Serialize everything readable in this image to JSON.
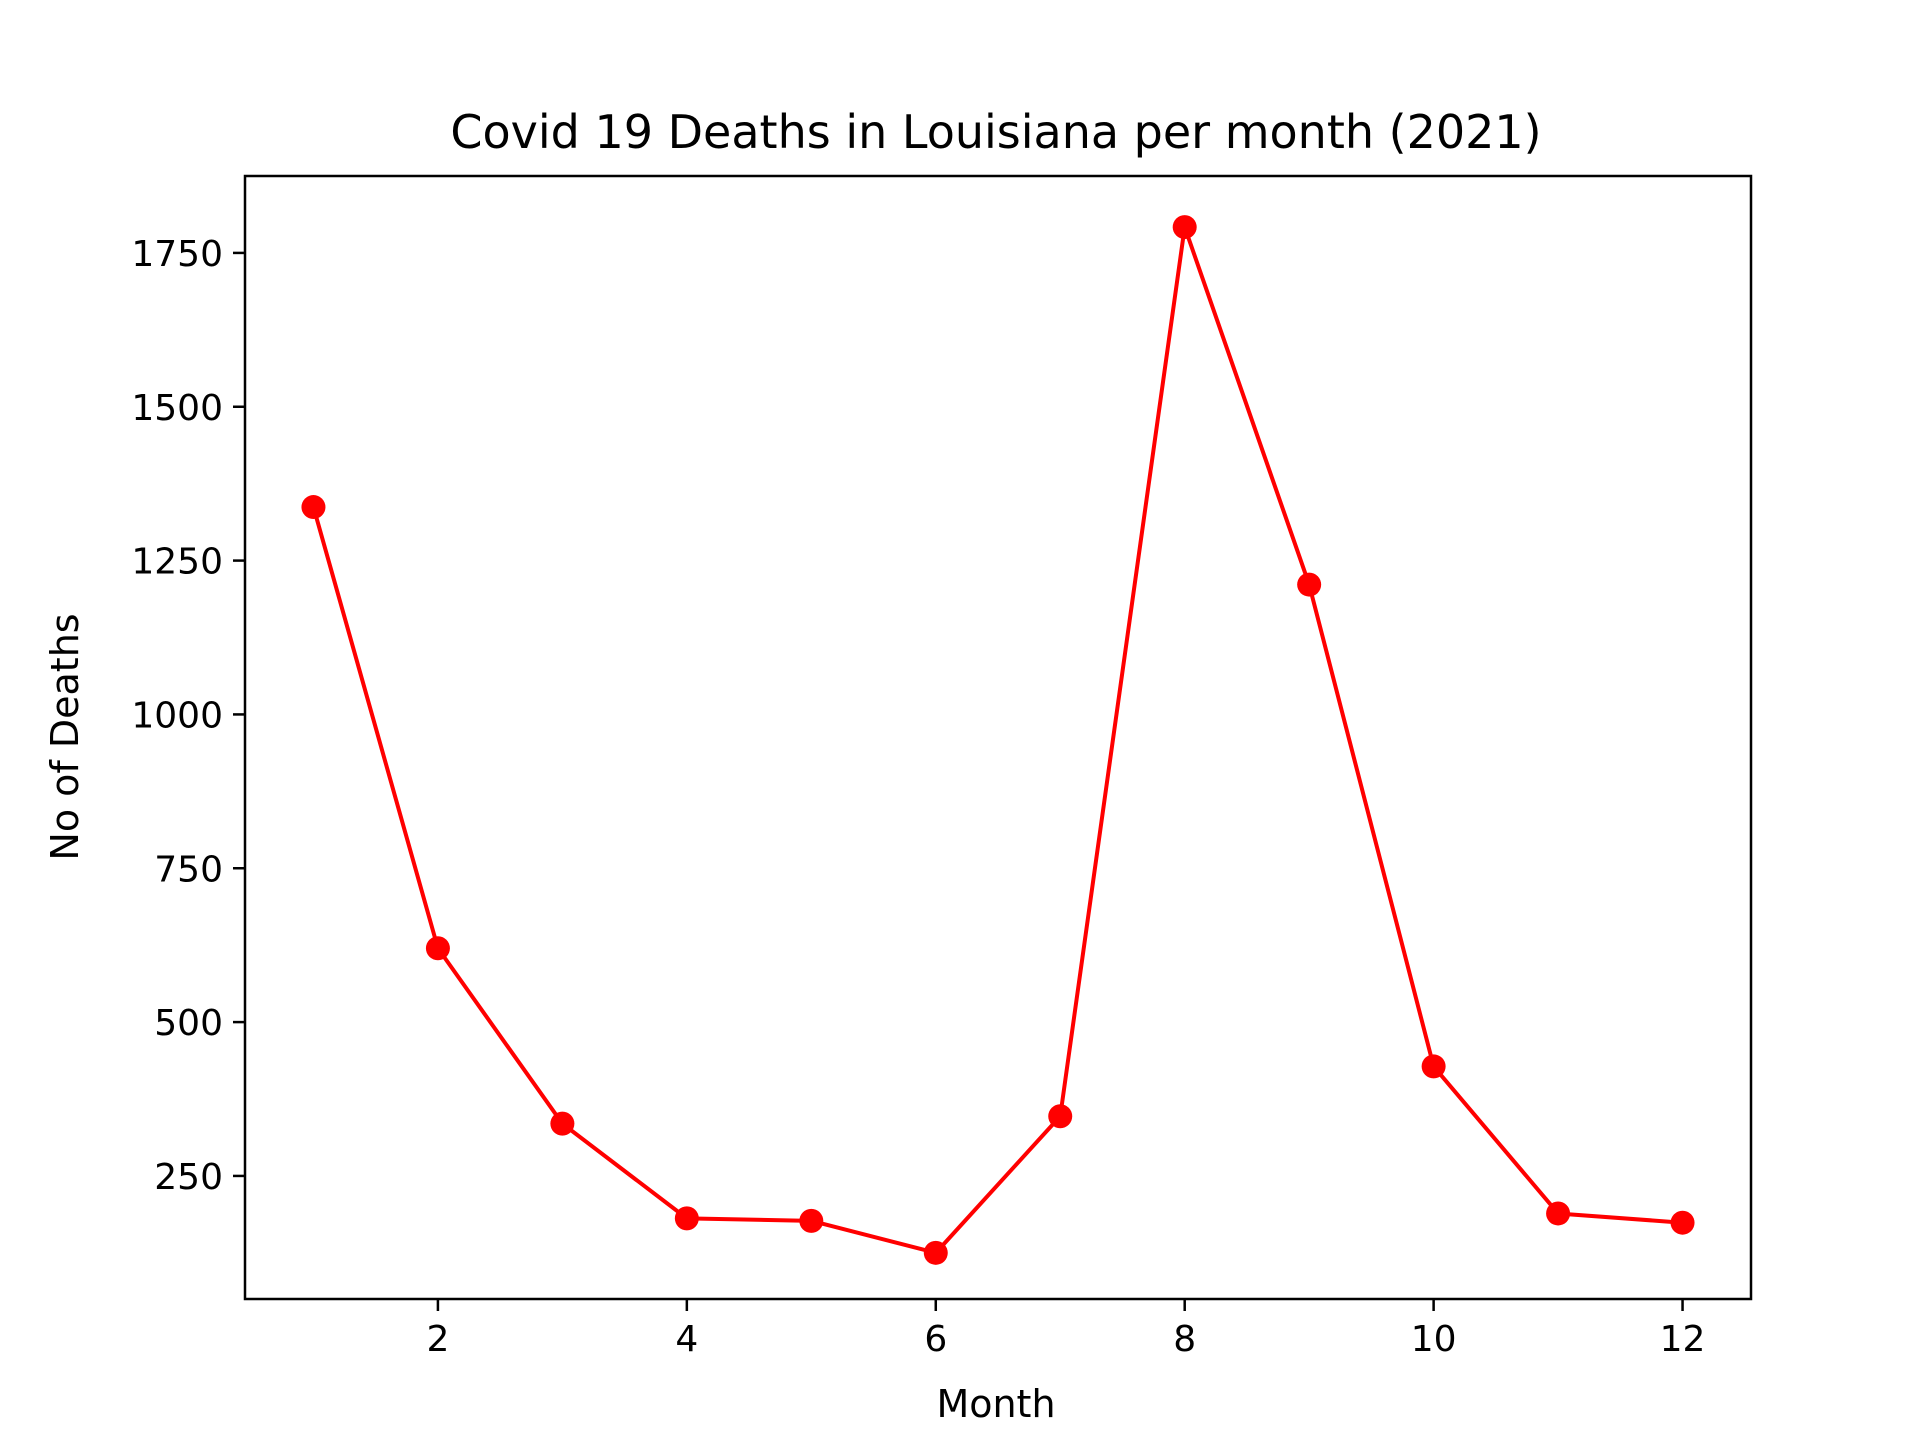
{
  "chart_data": {
    "type": "line",
    "title": "Covid 19 Deaths in Louisiana per month (2021)",
    "xlabel": "Month",
    "ylabel": "No of Deaths",
    "x": [
      1,
      2,
      3,
      4,
      5,
      6,
      7,
      8,
      9,
      10,
      11,
      12
    ],
    "series": [
      {
        "values": [
          1337,
          620,
          335,
          181,
          177,
          125,
          347,
          1792,
          1211,
          428,
          189,
          174
        ],
        "color": "#ff0000",
        "marker": "circle"
      }
    ],
    "xlim": [
      0.45,
      12.55
    ],
    "ylim": [
      50,
      1875
    ],
    "xticks": [
      2,
      4,
      6,
      8,
      10,
      12
    ],
    "yticks": [
      250,
      500,
      750,
      1000,
      1250,
      1500,
      1750
    ],
    "grid": false,
    "legend": "none"
  }
}
